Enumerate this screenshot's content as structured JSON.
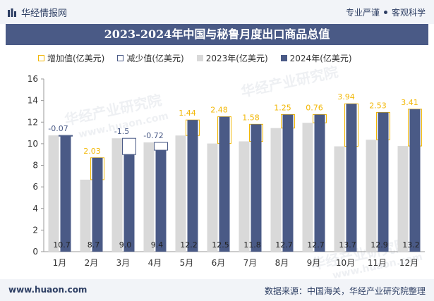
{
  "header": {
    "brand": "华经情报网",
    "tags": [
      "专业严谨",
      "客观科学"
    ]
  },
  "footer": {
    "website": "www.huaon.com",
    "source": "数据来源：中国海关，华经产业研究院整理"
  },
  "watermark": {
    "cn": "华经产业研究院",
    "url": "www.huaon.com"
  },
  "colors": {
    "increase": "#f2b705",
    "decrease": "#4a5a86",
    "bar2023": "#d9d9d9",
    "bar2024": "#4a5a86",
    "brand": "#4a5a86"
  },
  "chart_data": {
    "type": "bar",
    "title": "2023-2024年中国与秘鲁月度出口商品总值",
    "categories": [
      "1月",
      "2月",
      "3月",
      "4月",
      "5月",
      "6月",
      "7月",
      "8月",
      "9月",
      "10月",
      "11月",
      "12月"
    ],
    "series": [
      {
        "name": "2023年(亿美元)",
        "values": [
          10.77,
          6.67,
          10.5,
          10.12,
          10.76,
          10.02,
          10.22,
          11.45,
          11.94,
          9.76,
          10.37,
          9.79
        ]
      },
      {
        "name": "2024年(亿美元)",
        "values": [
          10.7,
          8.7,
          9.0,
          9.4,
          12.2,
          12.5,
          11.8,
          12.7,
          12.7,
          13.7,
          12.9,
          13.2
        ]
      }
    ],
    "change": [
      -0.07,
      2.03,
      -1.5,
      -0.72,
      1.44,
      2.48,
      1.58,
      1.25,
      0.76,
      3.94,
      2.53,
      3.41
    ],
    "change_labels": [
      "-0.07",
      "2.03",
      "-1.5",
      "-0.72",
      "1.44",
      "2.48",
      "1.58",
      "1.25",
      "0.76",
      "3.94",
      "2.53",
      "3.41"
    ],
    "value_labels": [
      "10.7",
      "8.7",
      "9.0",
      "9.4",
      "12.2",
      "12.5",
      "11.8",
      "12.7",
      "12.7",
      "13.7",
      "12.9",
      "13.2"
    ],
    "legend": [
      "增加值(亿美元)",
      "减少值(亿美元)",
      "2023年(亿美元)",
      "2024年(亿美元)"
    ],
    "ylim": [
      0,
      16
    ],
    "yticks": [
      0,
      2,
      4,
      6,
      8,
      10,
      12,
      14,
      16
    ],
    "grid": false,
    "legend_position": "top-left"
  }
}
